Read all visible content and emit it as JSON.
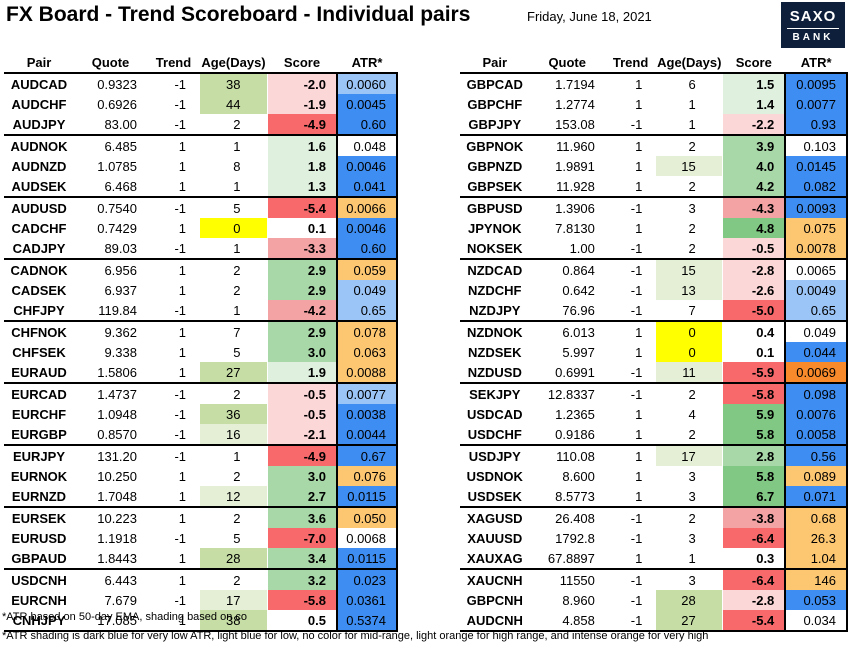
{
  "title": "FX Board - Trend Scoreboard - Individual pairs",
  "date": "Friday, June 18, 2021",
  "logo": {
    "line1": "SAXO",
    "line2": "BANK"
  },
  "columns": [
    "Pair",
    "Quote",
    "Trend",
    "Age(Days)",
    "Score",
    "ATR*"
  ],
  "colors": {
    "yellow": "#ffff00",
    "age_green": "#c6dea6",
    "age_green_light": "#e4efd6",
    "score_red_strong": "#f8696b",
    "score_red": "#f4a3a5",
    "score_red_light": "#fbd7d8",
    "score_green_strong": "#80c883",
    "score_green": "#a8d8a8",
    "score_green_light": "#dff0df",
    "atr_dark_blue": "#3d8df2",
    "atr_light_blue": "#9cc5f7",
    "atr_light_orange": "#fdc772",
    "atr_intense_orange": "#f88a2b"
  },
  "left_rows": [
    {
      "pair": "AUDCAD",
      "quote": "0.9323",
      "trend": "-1",
      "age": "38",
      "score": "-2.0",
      "atr": "0.0060",
      "age_c": "g",
      "score_c": "r1",
      "atr_c": "lb",
      "gl": false
    },
    {
      "pair": "AUDCHF",
      "quote": "0.6926",
      "trend": "-1",
      "age": "44",
      "score": "-1.9",
      "atr": "0.0045",
      "age_c": "g",
      "score_c": "r1",
      "atr_c": "db",
      "gl": false
    },
    {
      "pair": "AUDJPY",
      "quote": "83.00",
      "trend": "-1",
      "age": "2",
      "score": "-4.9",
      "atr": "0.60",
      "age_c": "",
      "score_c": "r3",
      "atr_c": "db",
      "gl": true
    },
    {
      "pair": "AUDNOK",
      "quote": "6.485",
      "trend": "1",
      "age": "1",
      "score": "1.6",
      "atr": "0.048",
      "age_c": "",
      "score_c": "g1",
      "atr_c": "",
      "gl": false
    },
    {
      "pair": "AUDNZD",
      "quote": "1.0785",
      "trend": "1",
      "age": "8",
      "score": "1.8",
      "atr": "0.0046",
      "age_c": "",
      "score_c": "g1",
      "atr_c": "db",
      "gl": false
    },
    {
      "pair": "AUDSEK",
      "quote": "6.468",
      "trend": "1",
      "age": "1",
      "score": "1.3",
      "atr": "0.041",
      "age_c": "",
      "score_c": "g1",
      "atr_c": "db",
      "gl": true
    },
    {
      "pair": "AUDUSD",
      "quote": "0.7540",
      "trend": "-1",
      "age": "5",
      "score": "-5.4",
      "atr": "0.0066",
      "age_c": "",
      "score_c": "r3",
      "atr_c": "lo",
      "gl": false
    },
    {
      "pair": "CADCHF",
      "quote": "0.7429",
      "trend": "1",
      "age": "0",
      "score": "0.1",
      "atr": "0.0046",
      "age_c": "y",
      "score_c": "",
      "atr_c": "db",
      "gl": false
    },
    {
      "pair": "CADJPY",
      "quote": "89.03",
      "trend": "-1",
      "age": "1",
      "score": "-3.3",
      "atr": "0.60",
      "age_c": "",
      "score_c": "r2",
      "atr_c": "db",
      "gl": true
    },
    {
      "pair": "CADNOK",
      "quote": "6.956",
      "trend": "1",
      "age": "2",
      "score": "2.9",
      "atr": "0.059",
      "age_c": "",
      "score_c": "g2",
      "atr_c": "lo",
      "gl": false
    },
    {
      "pair": "CADSEK",
      "quote": "6.937",
      "trend": "1",
      "age": "2",
      "score": "2.9",
      "atr": "0.049",
      "age_c": "",
      "score_c": "g2",
      "atr_c": "lb",
      "gl": false
    },
    {
      "pair": "CHFJPY",
      "quote": "119.84",
      "trend": "-1",
      "age": "1",
      "score": "-4.2",
      "atr": "0.65",
      "age_c": "",
      "score_c": "r2",
      "atr_c": "lb",
      "gl": true
    },
    {
      "pair": "CHFNOK",
      "quote": "9.362",
      "trend": "1",
      "age": "7",
      "score": "2.9",
      "atr": "0.078",
      "age_c": "",
      "score_c": "g2",
      "atr_c": "lo",
      "gl": false
    },
    {
      "pair": "CHFSEK",
      "quote": "9.338",
      "trend": "1",
      "age": "5",
      "score": "3.0",
      "atr": "0.063",
      "age_c": "",
      "score_c": "g2",
      "atr_c": "lo",
      "gl": false
    },
    {
      "pair": "EURAUD",
      "quote": "1.5806",
      "trend": "1",
      "age": "27",
      "score": "1.9",
      "atr": "0.0088",
      "age_c": "g",
      "score_c": "g1",
      "atr_c": "lo",
      "gl": true
    },
    {
      "pair": "EURCAD",
      "quote": "1.4737",
      "trend": "-1",
      "age": "2",
      "score": "-0.5",
      "atr": "0.0077",
      "age_c": "",
      "score_c": "r0",
      "atr_c": "lb",
      "gl": false
    },
    {
      "pair": "EURCHF",
      "quote": "1.0948",
      "trend": "-1",
      "age": "36",
      "score": "-0.5",
      "atr": "0.0038",
      "age_c": "g",
      "score_c": "r0",
      "atr_c": "db",
      "gl": false
    },
    {
      "pair": "EURGBP",
      "quote": "0.8570",
      "trend": "-1",
      "age": "16",
      "score": "-2.1",
      "atr": "0.0044",
      "age_c": "gl",
      "score_c": "r1",
      "atr_c": "db",
      "gl": true
    },
    {
      "pair": "EURJPY",
      "quote": "131.20",
      "trend": "-1",
      "age": "1",
      "score": "-4.9",
      "atr": "0.67",
      "age_c": "",
      "score_c": "r3",
      "atr_c": "db",
      "gl": false
    },
    {
      "pair": "EURNOK",
      "quote": "10.250",
      "trend": "1",
      "age": "2",
      "score": "3.0",
      "atr": "0.076",
      "age_c": "",
      "score_c": "g2",
      "atr_c": "lo",
      "gl": false
    },
    {
      "pair": "EURNZD",
      "quote": "1.7048",
      "trend": "1",
      "age": "12",
      "score": "2.7",
      "atr": "0.0115",
      "age_c": "gl",
      "score_c": "g2",
      "atr_c": "db",
      "gl": true
    },
    {
      "pair": "EURSEK",
      "quote": "10.223",
      "trend": "1",
      "age": "2",
      "score": "3.6",
      "atr": "0.050",
      "age_c": "",
      "score_c": "g2",
      "atr_c": "lo",
      "gl": false
    },
    {
      "pair": "EURUSD",
      "quote": "1.1918",
      "trend": "-1",
      "age": "5",
      "score": "-7.0",
      "atr": "0.0068",
      "age_c": "",
      "score_c": "r3",
      "atr_c": "",
      "gl": false
    },
    {
      "pair": "GBPAUD",
      "quote": "1.8443",
      "trend": "1",
      "age": "28",
      "score": "3.4",
      "atr": "0.0115",
      "age_c": "g",
      "score_c": "g2",
      "atr_c": "db",
      "gl": true
    },
    {
      "pair": "USDCNH",
      "quote": "6.443",
      "trend": "1",
      "age": "2",
      "score": "3.2",
      "atr": "0.023",
      "age_c": "",
      "score_c": "g2",
      "atr_c": "db",
      "gl": false
    },
    {
      "pair": "EURCNH",
      "quote": "7.679",
      "trend": "-1",
      "age": "17",
      "score": "-5.8",
      "atr": "0.0361",
      "age_c": "gl",
      "score_c": "r3",
      "atr_c": "db",
      "gl": false
    },
    {
      "pair": "CNHJPY",
      "quote": "17.085",
      "trend": "1",
      "age": "38",
      "score": "0.5",
      "atr": "0.5374",
      "age_c": "g",
      "score_c": "",
      "atr_c": "db",
      "gl": true
    }
  ],
  "right_rows": [
    {
      "pair": "GBPCAD",
      "quote": "1.7194",
      "trend": "1",
      "age": "6",
      "score": "1.5",
      "atr": "0.0095",
      "age_c": "",
      "score_c": "g1",
      "atr_c": "db",
      "gl": false
    },
    {
      "pair": "GBPCHF",
      "quote": "1.2774",
      "trend": "1",
      "age": "1",
      "score": "1.4",
      "atr": "0.0077",
      "age_c": "",
      "score_c": "g1",
      "atr_c": "db",
      "gl": false
    },
    {
      "pair": "GBPJPY",
      "quote": "153.08",
      "trend": "-1",
      "age": "1",
      "score": "-2.2",
      "atr": "0.93",
      "age_c": "",
      "score_c": "r1",
      "atr_c": "db",
      "gl": true
    },
    {
      "pair": "GBPNOK",
      "quote": "11.960",
      "trend": "1",
      "age": "2",
      "score": "3.9",
      "atr": "0.103",
      "age_c": "",
      "score_c": "g2",
      "atr_c": "",
      "gl": false
    },
    {
      "pair": "GBPNZD",
      "quote": "1.9891",
      "trend": "1",
      "age": "15",
      "score": "4.0",
      "atr": "0.0145",
      "age_c": "gl",
      "score_c": "g2",
      "atr_c": "db",
      "gl": false
    },
    {
      "pair": "GBPSEK",
      "quote": "11.928",
      "trend": "1",
      "age": "2",
      "score": "4.2",
      "atr": "0.082",
      "age_c": "",
      "score_c": "g2",
      "atr_c": "db",
      "gl": true
    },
    {
      "pair": "GBPUSD",
      "quote": "1.3906",
      "trend": "-1",
      "age": "3",
      "score": "-4.3",
      "atr": "0.0093",
      "age_c": "",
      "score_c": "r2",
      "atr_c": "db",
      "gl": false
    },
    {
      "pair": "JPYNOK",
      "quote": "7.8130",
      "trend": "1",
      "age": "2",
      "score": "4.8",
      "atr": "0.075",
      "age_c": "",
      "score_c": "g3",
      "atr_c": "lo",
      "gl": false
    },
    {
      "pair": "NOKSEK",
      "quote": "1.00",
      "trend": "-1",
      "age": "2",
      "score": "-0.5",
      "atr": "0.0078",
      "age_c": "",
      "score_c": "r0",
      "atr_c": "lo",
      "gl": true
    },
    {
      "pair": "NZDCAD",
      "quote": "0.864",
      "trend": "-1",
      "age": "15",
      "score": "-2.8",
      "atr": "0.0065",
      "age_c": "gl",
      "score_c": "r1",
      "atr_c": "",
      "gl": false
    },
    {
      "pair": "NZDCHF",
      "quote": "0.642",
      "trend": "-1",
      "age": "13",
      "score": "-2.6",
      "atr": "0.0049",
      "age_c": "gl",
      "score_c": "r1",
      "atr_c": "lb",
      "gl": false
    },
    {
      "pair": "NZDJPY",
      "quote": "76.96",
      "trend": "-1",
      "age": "7",
      "score": "-5.0",
      "atr": "0.65",
      "age_c": "",
      "score_c": "r3",
      "atr_c": "lb",
      "gl": true
    },
    {
      "pair": "NZDNOK",
      "quote": "6.013",
      "trend": "1",
      "age": "0",
      "score": "0.4",
      "atr": "0.049",
      "age_c": "y",
      "score_c": "",
      "atr_c": "",
      "gl": false
    },
    {
      "pair": "NZDSEK",
      "quote": "5.997",
      "trend": "1",
      "age": "0",
      "score": "0.1",
      "atr": "0.044",
      "age_c": "y",
      "score_c": "",
      "atr_c": "db",
      "gl": false
    },
    {
      "pair": "NZDUSD",
      "quote": "0.6991",
      "trend": "-1",
      "age": "11",
      "score": "-5.9",
      "atr": "0.0069",
      "age_c": "gl",
      "score_c": "r3",
      "atr_c": "io",
      "gl": true
    },
    {
      "pair": "SEKJPY",
      "quote": "12.8337",
      "trend": "-1",
      "age": "2",
      "score": "-5.8",
      "atr": "0.098",
      "age_c": "",
      "score_c": "r3",
      "atr_c": "db",
      "gl": false
    },
    {
      "pair": "USDCAD",
      "quote": "1.2365",
      "trend": "1",
      "age": "4",
      "score": "5.9",
      "atr": "0.0076",
      "age_c": "",
      "score_c": "g3",
      "atr_c": "db",
      "gl": false
    },
    {
      "pair": "USDCHF",
      "quote": "0.9186",
      "trend": "1",
      "age": "2",
      "score": "5.8",
      "atr": "0.0058",
      "age_c": "",
      "score_c": "g3",
      "atr_c": "db",
      "gl": true
    },
    {
      "pair": "USDJPY",
      "quote": "110.08",
      "trend": "1",
      "age": "17",
      "score": "2.8",
      "atr": "0.56",
      "age_c": "gl",
      "score_c": "g2",
      "atr_c": "db",
      "gl": false
    },
    {
      "pair": "USDNOK",
      "quote": "8.600",
      "trend": "1",
      "age": "3",
      "score": "5.8",
      "atr": "0.089",
      "age_c": "",
      "score_c": "g3",
      "atr_c": "lo",
      "gl": false
    },
    {
      "pair": "USDSEK",
      "quote": "8.5773",
      "trend": "1",
      "age": "3",
      "score": "6.7",
      "atr": "0.071",
      "age_c": "",
      "score_c": "g3",
      "atr_c": "db",
      "gl": true
    },
    {
      "pair": "XAGUSD",
      "quote": "26.408",
      "trend": "-1",
      "age": "2",
      "score": "-3.8",
      "atr": "0.68",
      "age_c": "",
      "score_c": "r2",
      "atr_c": "lo",
      "gl": false
    },
    {
      "pair": "XAUUSD",
      "quote": "1792.8",
      "trend": "-1",
      "age": "3",
      "score": "-6.4",
      "atr": "26.3",
      "age_c": "",
      "score_c": "r3",
      "atr_c": "lo",
      "gl": false
    },
    {
      "pair": "XAUXAG",
      "quote": "67.8897",
      "trend": "1",
      "age": "1",
      "score": "0.3",
      "atr": "1.04",
      "age_c": "",
      "score_c": "",
      "atr_c": "lo",
      "gl": true
    },
    {
      "pair": "XAUCNH",
      "quote": "11550",
      "trend": "-1",
      "age": "3",
      "score": "-6.4",
      "atr": "146",
      "age_c": "",
      "score_c": "r3",
      "atr_c": "lo",
      "gl": false
    },
    {
      "pair": "GBPCNH",
      "quote": "8.960",
      "trend": "-1",
      "age": "28",
      "score": "-2.8",
      "atr": "0.053",
      "age_c": "g",
      "score_c": "r1",
      "atr_c": "db",
      "gl": false
    },
    {
      "pair": "AUDCNH",
      "quote": "4.858",
      "trend": "-1",
      "age": "27",
      "score": "-5.4",
      "atr": "0.034",
      "age_c": "g",
      "score_c": "r3",
      "atr_c": "",
      "gl": true
    }
  ],
  "footer_note1": "*ATR based on 50-day EMA, shading based on co",
  "footer_note2": "*ATR shading is dark blue for very low ATR, light blue for low, no color for mid-range, light orange for high range, and intense orange for very high"
}
